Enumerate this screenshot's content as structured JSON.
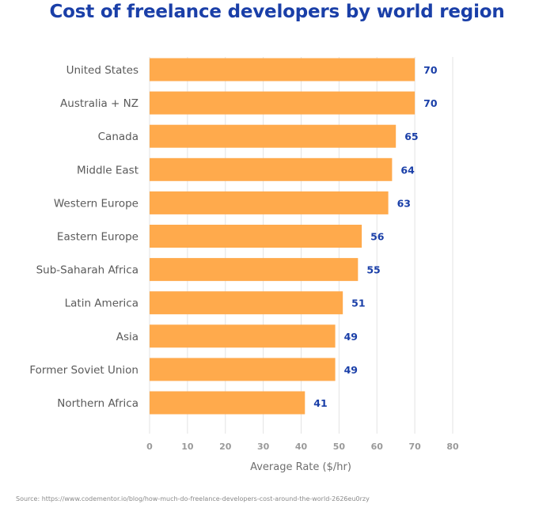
{
  "chart_data": {
    "type": "bar",
    "orientation": "horizontal",
    "title": "Cost of freelance developers by world region",
    "xlabel": "Average Rate ($/hr)",
    "ylabel": "",
    "xlim": [
      0,
      80
    ],
    "xticks": [
      0,
      10,
      20,
      30,
      40,
      50,
      60,
      70,
      80
    ],
    "grid": true,
    "categories": [
      "United States",
      "Australia + NZ",
      "Canada",
      "Middle East",
      "Western Europe",
      "Eastern Europe",
      "Sub-Saharah Africa",
      "Latin America",
      "Asia",
      "Former Soviet Union",
      "Northern Africa"
    ],
    "values": [
      70,
      70,
      65,
      64,
      63,
      56,
      55,
      51,
      49,
      49,
      41
    ],
    "bar_color": "#ffaa4c",
    "label_color": "#1a3fa8"
  },
  "source": "Source: https://www.codementor.io/blog/how-much-do-freelance-developers-cost-around-the-world-2626eu0rzy"
}
